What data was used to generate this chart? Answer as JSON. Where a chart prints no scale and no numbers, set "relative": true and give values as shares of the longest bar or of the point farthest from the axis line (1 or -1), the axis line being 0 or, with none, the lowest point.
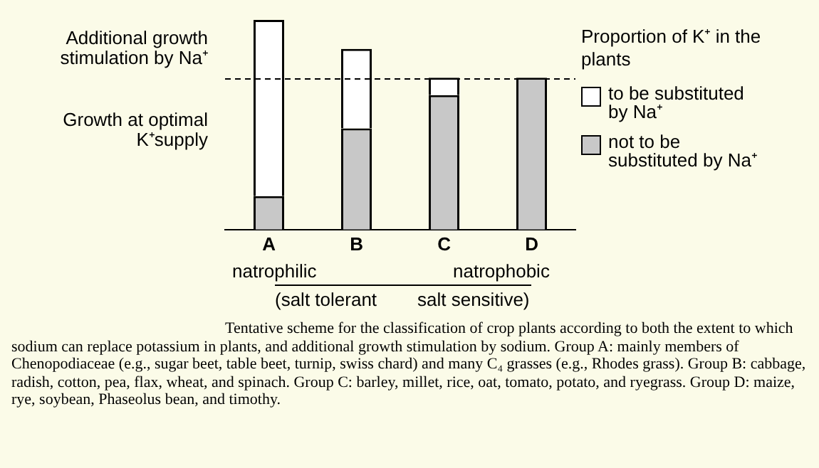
{
  "chart_data": {
    "type": "bar",
    "relative": true,
    "stacked": true,
    "categories": [
      "A",
      "B",
      "C",
      "D"
    ],
    "series": [
      {
        "name": "not to be substituted by Na⁺",
        "color": "#c8c8c8",
        "values": [
          0.16,
          0.483,
          0.641,
          0.724
        ]
      },
      {
        "name": "to be substituted by Na⁺",
        "color": "#ffffff",
        "values": [
          0.84,
          0.379,
          0.083,
          0
        ]
      }
    ],
    "legend": "right",
    "legend_title": "Proportion of K⁺ in the plants",
    "grid": false,
    "ref_lines": [
      {
        "axis": "y",
        "value": 0.724,
        "line_style": "dashed"
      }
    ],
    "annotations": [
      "Additional growth stimulation by Na⁺",
      "Growth at optimal K⁺supply",
      "natrophilic",
      "natrophobic",
      "(salt tolerant",
      "salt sensitive)",
      "Tentative scheme for the classification of crop plants according to both the extent to which sodium can replace potassium in plants, and additional growth stimulation by sodium. Group A: mainly members of Chenopodiaceae (e.g., sugar beet, table beet, turnip, swiss chard) and many C₄ grasses (e.g., Rhodes grass). Group B: cabbage, radish, cotton, pea, flax, wheat, and spinach. Group C: barley, millet, rice, oat, tomato, potato, and ryegrass. Group D: maize, rye, soybean, Phaseolus bean, and timothy."
    ]
  }
}
